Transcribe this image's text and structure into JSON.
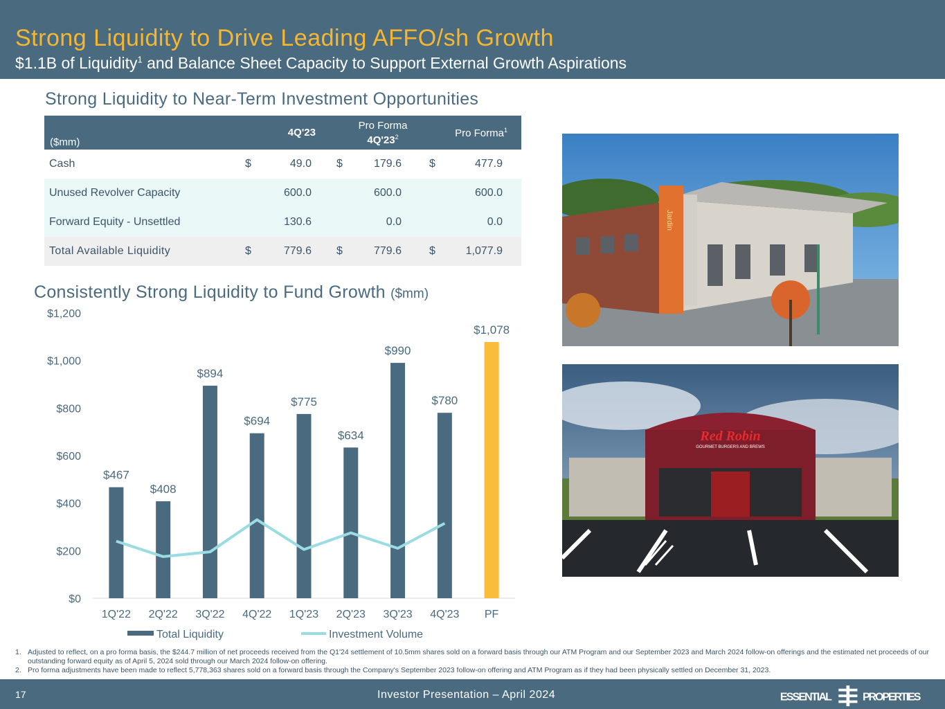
{
  "header": {
    "title": "Strong Liquidity to Drive Leading AFFO/sh Growth",
    "subtitle_pre": "$1.1B of Liquidity",
    "subtitle_sup": "1",
    "subtitle_post": " and Balance Sheet Capacity to Support External Growth Aspirations"
  },
  "table_section": {
    "title": "Strong Liquidity to Near-Term Investment Opportunities",
    "unit": "($mm)",
    "col1": "4Q'23",
    "col2_line1": "Pro Forma",
    "col2_line2": "4Q'23",
    "col2_sup": "2",
    "col3": "Pro Forma",
    "col3_sup": "1",
    "rows": [
      {
        "label": "Cash",
        "c1": "$",
        "v1": "49.0",
        "c2": "$",
        "v2": "179.6",
        "c3": "$",
        "v3": "477.9"
      },
      {
        "label": "Unused Revolver Capacity",
        "c1": "",
        "v1": "600.0",
        "c2": "",
        "v2": "600.0",
        "c3": "",
        "v3": "600.0"
      },
      {
        "label": "Forward Equity - Unsettled",
        "c1": "",
        "v1": "130.6",
        "c2": "",
        "v2": "0.0",
        "c3": "",
        "v3": "0.0"
      },
      {
        "label": "Total Available Liquidity",
        "c1": "$",
        "v1": "779.6",
        "c2": "$",
        "v2": "779.6",
        "c3": "$",
        "v3": "1,077.9"
      }
    ]
  },
  "chart_section": {
    "title": "Consistently Strong Liquidity to Fund Growth",
    "unit": "($mm)"
  },
  "chart_data": {
    "type": "bar",
    "title": "Consistently Strong Liquidity to Fund Growth ($mm)",
    "categories": [
      "1Q'22",
      "2Q'22",
      "3Q'22",
      "4Q'22",
      "1Q'23",
      "2Q'23",
      "3Q'23",
      "4Q'23",
      "PF"
    ],
    "series": [
      {
        "name": "Total Liquidity",
        "type": "bar",
        "color": "#4a6a80",
        "values": [
          467,
          408,
          894,
          694,
          775,
          634,
          990,
          780,
          1078
        ]
      },
      {
        "name": "Investment Volume",
        "type": "line",
        "color": "#9adce2",
        "values": [
          240,
          175,
          195,
          330,
          205,
          275,
          210,
          315,
          null
        ]
      }
    ],
    "data_labels": [
      "$467",
      "$408",
      "$894",
      "$694",
      "$775",
      "$634",
      "$990",
      "$780",
      "$1,078"
    ],
    "highlight_color": "#f9bd3b",
    "y_ticks": [
      "$0",
      "$200",
      "$400",
      "$600",
      "$800",
      "$1,000",
      "$1,200"
    ],
    "ylim": [
      0,
      1200
    ],
    "legend": [
      "Total Liquidity",
      "Investment Volume"
    ],
    "legend_position": "bottom"
  },
  "footnotes": [
    {
      "num": "1.",
      "text": "Adjusted to reflect, on a pro forma basis, the $244.7 million of net proceeds received from the Q1'24 settlement of 10.5mm shares sold on a forward basis through our ATM Program and our September 2023 and March 2024 follow-on offerings and the estimated net proceeds of our outstanding forward equity as of April 5, 2024 sold through our March 2024 follow-on offering."
    },
    {
      "num": "2.",
      "text": "Pro forma adjustments have been made to reflect 5,778,363 shares sold on a forward basis through the Company's September 2023 follow-on offering and ATM Program as if they had been physically settled on December 31, 2023."
    }
  ],
  "footer": {
    "page": "17",
    "presentation": "Investor Presentation – April 2024",
    "logo_left": "ESSENTIAL",
    "logo_right": "PROPERTIES"
  },
  "photos": {
    "top_sign": "Jardin",
    "bottom_sign": "Red Robin",
    "bottom_tagline": "GOURMET BURGERS AND BREWS"
  },
  "colors": {
    "navy": "#4a6a80",
    "gold": "#f5b731",
    "teal": "#9adce2",
    "mint": "#eaf8f8"
  }
}
